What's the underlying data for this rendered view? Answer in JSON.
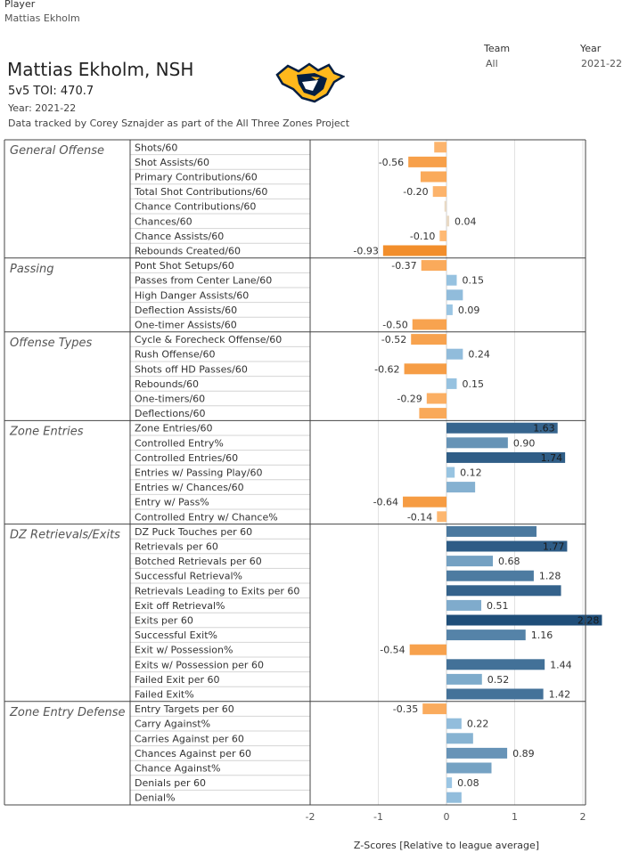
{
  "filters": {
    "player": {
      "label": "Player",
      "value": "Mattias Ekholm"
    },
    "team": {
      "label": "Team",
      "value": "All"
    },
    "year": {
      "label": "Year",
      "value": "2021-22"
    }
  },
  "header": {
    "title": "Mattias Ekholm, NSH",
    "toi_label": "5v5 TOI:",
    "toi_value": "470.7",
    "year_line": "Year: 2021-22",
    "credit": "Data tracked by Corey Sznajder as part of the All Three Zones Project"
  },
  "logo": {
    "name": "nashville-predators-logo",
    "colors": {
      "gold": "#FFB81C",
      "navy": "#041E42"
    }
  },
  "colors": {
    "negative_dark": "#F28E2B",
    "negative_light": "#FFBE7D",
    "positive_light": "#A0CBE8",
    "positive_dark": "#1F4E79",
    "near_zero": "#E8D9C5",
    "label_text": "#333333"
  },
  "chart_data": {
    "type": "bar",
    "orientation": "horizontal",
    "xlabel": "Z-Scores [Relative to league average]",
    "xlim": [
      -2,
      2
    ],
    "xticks": [
      "-2",
      "-1",
      "0",
      "1",
      "2"
    ],
    "grid": true,
    "groups": [
      {
        "name": "General Offense",
        "rows": [
          {
            "label": "Shots/60",
            "value": -0.18,
            "data_label": ""
          },
          {
            "label": "Shot Assists/60",
            "value": -0.56,
            "data_label": "-0.56"
          },
          {
            "label": "Primary Contributions/60",
            "value": -0.38,
            "data_label": ""
          },
          {
            "label": "Total Shot Contributions/60",
            "value": -0.2,
            "data_label": "-0.20"
          },
          {
            "label": "Chance Contributions/60",
            "value": -0.03,
            "data_label": ""
          },
          {
            "label": "Chances/60",
            "value": 0.04,
            "data_label": "0.04"
          },
          {
            "label": "Chance Assists/60",
            "value": -0.1,
            "data_label": "-0.10"
          },
          {
            "label": "Rebounds Created/60",
            "value": -0.93,
            "data_label": "-0.93"
          }
        ]
      },
      {
        "name": "Passing",
        "rows": [
          {
            "label": "Pont Shot Setups/60",
            "value": -0.37,
            "data_label": "-0.37"
          },
          {
            "label": "Passes from Center Lane/60",
            "value": 0.15,
            "data_label": "0.15"
          },
          {
            "label": "High Danger Assists/60",
            "value": 0.24,
            "data_label": ""
          },
          {
            "label": "Deflection Assists/60",
            "value": 0.09,
            "data_label": "0.09"
          },
          {
            "label": "One-timer Assists/60",
            "value": -0.5,
            "data_label": "-0.50"
          }
        ]
      },
      {
        "name": "Offense Types",
        "rows": [
          {
            "label": "Cycle & Forecheck Offense/60",
            "value": -0.52,
            "data_label": "-0.52"
          },
          {
            "label": "Rush Offense/60",
            "value": 0.24,
            "data_label": "0.24"
          },
          {
            "label": "Shots off HD Passes/60",
            "value": -0.62,
            "data_label": "-0.62"
          },
          {
            "label": "Rebounds/60",
            "value": 0.15,
            "data_label": "0.15"
          },
          {
            "label": "One-timers/60",
            "value": -0.29,
            "data_label": "-0.29"
          },
          {
            "label": "Deflections/60",
            "value": -0.4,
            "data_label": ""
          }
        ]
      },
      {
        "name": "Zone Entries",
        "rows": [
          {
            "label": "Zone Entries/60",
            "value": 1.63,
            "data_label": "1.63"
          },
          {
            "label": "Controlled Entry%",
            "value": 0.9,
            "data_label": "0.90"
          },
          {
            "label": "Controlled Entries/60",
            "value": 1.74,
            "data_label": "1.74"
          },
          {
            "label": "Entries w/ Passing Play/60",
            "value": 0.12,
            "data_label": "0.12"
          },
          {
            "label": "Entries w/ Chances/60",
            "value": 0.42,
            "data_label": ""
          },
          {
            "label": "Entry w/ Pass%",
            "value": -0.64,
            "data_label": "-0.64"
          },
          {
            "label": "Controlled Entry w/ Chance%",
            "value": -0.14,
            "data_label": "-0.14"
          }
        ]
      },
      {
        "name": "DZ Retrievals/Exits",
        "rows": [
          {
            "label": "DZ Puck Touches per 60",
            "value": 1.32,
            "data_label": ""
          },
          {
            "label": "Retrievals per 60",
            "value": 1.77,
            "data_label": "1.77"
          },
          {
            "label": "Botched Retrievals per 60",
            "value": 0.68,
            "data_label": "0.68"
          },
          {
            "label": "Successful Retrieval%",
            "value": 1.28,
            "data_label": "1.28"
          },
          {
            "label": "Retrievals Leading to Exits per 60",
            "value": 1.68,
            "data_label": ""
          },
          {
            "label": "Exit off Retrieval%",
            "value": 0.51,
            "data_label": "0.51"
          },
          {
            "label": "Exits per 60",
            "value": 2.28,
            "data_label": "2.28"
          },
          {
            "label": "Successful Exit%",
            "value": 1.16,
            "data_label": "1.16"
          },
          {
            "label": "Exit w/ Possession%",
            "value": -0.54,
            "data_label": "-0.54"
          },
          {
            "label": "Exits w/ Possession per 60",
            "value": 1.44,
            "data_label": "1.44"
          },
          {
            "label": "Failed Exit per 60",
            "value": 0.52,
            "data_label": "0.52"
          },
          {
            "label": "Failed Exit%",
            "value": 1.42,
            "data_label": "1.42"
          }
        ]
      },
      {
        "name": "Zone Entry Defense",
        "rows": [
          {
            "label": "Entry Targets per 60",
            "value": -0.35,
            "data_label": "-0.35"
          },
          {
            "label": "Carry Against%",
            "value": 0.22,
            "data_label": "0.22"
          },
          {
            "label": "Carries Against per 60",
            "value": 0.39,
            "data_label": ""
          },
          {
            "label": "Chances Against per 60",
            "value": 0.89,
            "data_label": "0.89"
          },
          {
            "label": "Chance Against%",
            "value": 0.66,
            "data_label": ""
          },
          {
            "label": "Denials per 60",
            "value": 0.08,
            "data_label": "0.08"
          },
          {
            "label": "Denial%",
            "value": 0.22,
            "data_label": ""
          }
        ]
      }
    ]
  }
}
